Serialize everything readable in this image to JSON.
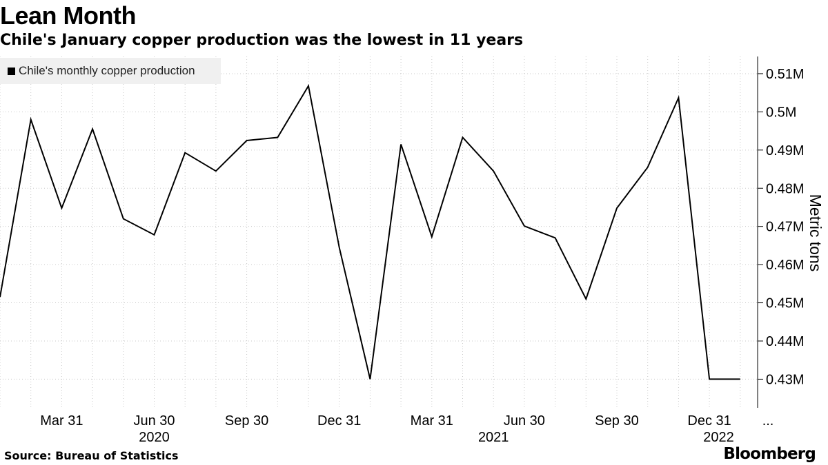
{
  "header": {
    "title": "Lean Month",
    "subtitle": "Chile's January copper production was the lowest in 11 years"
  },
  "legend": {
    "label": "Chile's monthly copper production",
    "swatch_color": "#000000"
  },
  "footer": {
    "source": "Source: Bureau of Statistics",
    "brand": "Bloomberg"
  },
  "chart_data": {
    "type": "line",
    "title": "",
    "xlabel": "",
    "ylabel": "Metric tons",
    "ylim": [
      0.4225,
      0.5145
    ],
    "yticks": [
      0.43,
      0.44,
      0.45,
      0.46,
      0.47,
      0.48,
      0.49,
      0.5,
      0.51
    ],
    "ytick_labels": [
      "0.43M",
      "0.44M",
      "0.45M",
      "0.46M",
      "0.47M",
      "0.48M",
      "0.49M",
      "0.5M",
      "0.51M"
    ],
    "x_tick_labels": [
      {
        "label": "Mar 31",
        "month_index": 2
      },
      {
        "label": "Jun 30",
        "month_index": 5
      },
      {
        "label": "Sep 30",
        "month_index": 8
      },
      {
        "label": "Dec 31",
        "month_index": 11
      },
      {
        "label": "Mar 31",
        "month_index": 14
      },
      {
        "label": "Jun 30",
        "month_index": 17
      },
      {
        "label": "Sep 30",
        "month_index": 20
      },
      {
        "label": "Dec 31",
        "month_index": 23
      },
      {
        "label": "...",
        "month_index": 24.9
      }
    ],
    "year_labels": [
      {
        "label": "2020",
        "month_index": 5
      },
      {
        "label": "2021",
        "month_index": 16
      },
      {
        "label": "2022",
        "month_index": 23.3
      }
    ],
    "x_range": [
      0,
      24.15
    ],
    "grid": true,
    "legend_position": "top-left",
    "series": [
      {
        "name": "Chile's monthly copper production",
        "color": "#000000",
        "x": [
          "2020-01",
          "2020-02",
          "2020-03",
          "2020-04",
          "2020-05",
          "2020-06",
          "2020-07",
          "2020-08",
          "2020-09",
          "2020-10",
          "2020-11",
          "2020-12",
          "2021-01",
          "2021-02",
          "2021-03",
          "2021-04",
          "2021-05",
          "2021-06",
          "2021-07",
          "2021-08",
          "2021-09",
          "2021-10",
          "2021-11",
          "2021-12",
          "2022-01"
        ],
        "values": [
          0.4515,
          0.498,
          0.4748,
          0.4955,
          0.472,
          0.4678,
          0.4893,
          0.4845,
          0.4925,
          0.4933,
          0.5068,
          0.4645,
          0.43,
          0.4915,
          0.4673,
          0.4933,
          0.4845,
          0.4701,
          0.467,
          0.451,
          0.4748,
          0.4855,
          0.5037,
          0.43,
          0.43
        ]
      }
    ]
  }
}
